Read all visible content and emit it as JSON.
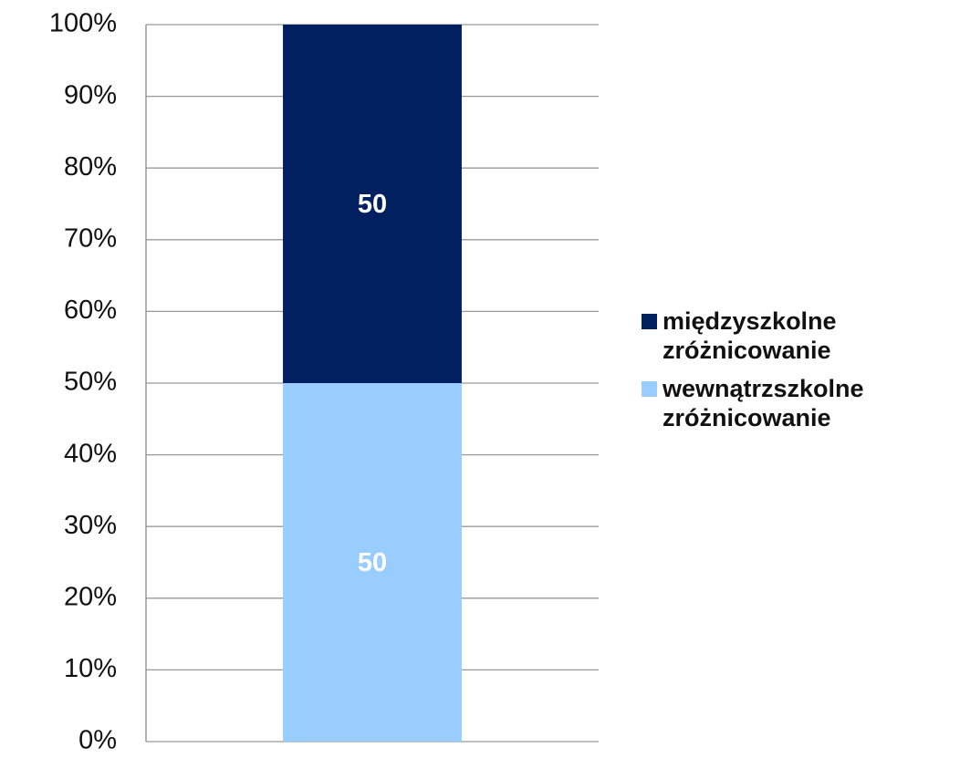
{
  "chart_data": {
    "type": "stacked_bar",
    "categories": [
      null
    ],
    "series": [
      {
        "name": "wewnątrzszkolne zróżnicowanie",
        "color": "#99ccff",
        "values": [
          50
        ]
      },
      {
        "name": "międzyszkolne zróżnicowanie",
        "color": "#002060",
        "values": [
          50
        ]
      }
    ],
    "ylim": [
      0,
      100
    ],
    "yticks": [
      {
        "value": 0,
        "label": "0%"
      },
      {
        "value": 10,
        "label": "10%"
      },
      {
        "value": 20,
        "label": "20%"
      },
      {
        "value": 30,
        "label": "30%"
      },
      {
        "value": 40,
        "label": "40%"
      },
      {
        "value": 50,
        "label": "50%"
      },
      {
        "value": 60,
        "label": "60%"
      },
      {
        "value": 70,
        "label": "70%"
      },
      {
        "value": 80,
        "label": "80%"
      },
      {
        "value": 90,
        "label": "90%"
      },
      {
        "value": 100,
        "label": "100%"
      }
    ],
    "grid": true,
    "legend": "right"
  }
}
